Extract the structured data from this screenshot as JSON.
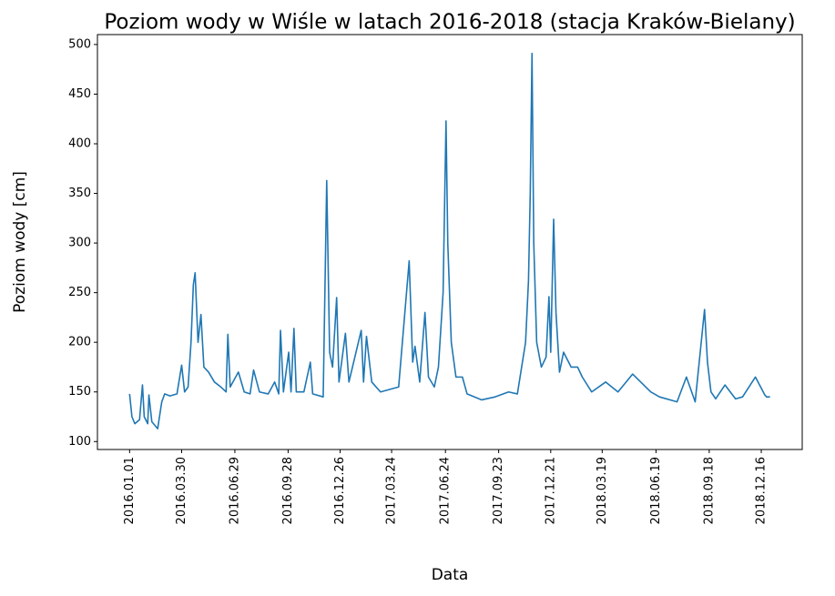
{
  "chart_data": {
    "type": "line",
    "title": "Poziom wody w Wiśle w latach 2016-2018 (stacja Kraków-Bielany)",
    "x_label": "Data",
    "y_label": "Poziom wody [cm]",
    "x": [
      "2016.01.01",
      "2016.01.05",
      "2016.01.10",
      "2016.01.18",
      "2016.01.23",
      "2016.01.26",
      "2016.02.01",
      "2016.02.03",
      "2016.02.08",
      "2016.02.18",
      "2016.02.25",
      "2016.03.01",
      "2016.03.10",
      "2016.03.22",
      "2016.03.30",
      "2016.04.04",
      "2016.04.10",
      "2016.04.15",
      "2016.04.19",
      "2016.04.22",
      "2016.04.27",
      "2016.05.02",
      "2016.05.07",
      "2016.05.15",
      "2016.05.25",
      "2016.06.05",
      "2016.06.14",
      "2016.06.17",
      "2016.06.21",
      "2016.07.05",
      "2016.07.15",
      "2016.07.25",
      "2016.07.31",
      "2016.08.10",
      "2016.08.25",
      "2016.09.05",
      "2016.09.12",
      "2016.09.15",
      "2016.09.20",
      "2016.09.29",
      "2016.10.03",
      "2016.10.08",
      "2016.10.12",
      "2016.10.25",
      "2016.11.05",
      "2016.11.09",
      "2016.11.27",
      "2016.12.03",
      "2016.12.08",
      "2016.12.13",
      "2016.12.20",
      "2016.12.24",
      "2017.01.04",
      "2017.01.10",
      "2017.01.31",
      "2017.02.04",
      "2017.02.09",
      "2017.02.18",
      "2017.03.05",
      "2017.04.05",
      "2017.04.23",
      "2017.04.29",
      "2017.05.03",
      "2017.05.11",
      "2017.05.20",
      "2017.05.26",
      "2017.06.05",
      "2017.06.12",
      "2017.06.20",
      "2017.06.25",
      "2017.06.28",
      "2017.07.04",
      "2017.07.12",
      "2017.07.23",
      "2017.07.31",
      "2017.08.25",
      "2017.09.17",
      "2017.10.10",
      "2017.10.25",
      "2017.11.08",
      "2017.11.13",
      "2017.11.16",
      "2017.11.19",
      "2017.11.22",
      "2017.11.27",
      "2017.12.05",
      "2017.12.13",
      "2017.12.18",
      "2017.12.21",
      "2017.12.26",
      "2017.12.30",
      "2018.01.05",
      "2018.01.12",
      "2018.01.25",
      "2018.02.05",
      "2018.02.13",
      "2018.03.01",
      "2018.03.25",
      "2018.04.15",
      "2018.05.10",
      "2018.06.10",
      "2018.06.25",
      "2018.07.25",
      "2018.08.10",
      "2018.08.25",
      "2018.09.10",
      "2018.09.15",
      "2018.09.21",
      "2018.09.29",
      "2018.10.15",
      "2018.11.02",
      "2018.11.14",
      "2018.12.06",
      "2018.12.22",
      "2018.12.25",
      "2018.12.31"
    ],
    "series": [
      {
        "name": "Poziom wody",
        "color": "#1f77b4",
        "values": [
          148,
          125,
          118,
          122,
          157,
          125,
          118,
          147,
          120,
          113,
          140,
          148,
          146,
          148,
          177,
          150,
          155,
          200,
          258,
          270,
          200,
          228,
          175,
          170,
          160,
          155,
          150,
          208,
          155,
          170,
          150,
          148,
          172,
          150,
          148,
          160,
          148,
          212,
          150,
          190,
          150,
          214,
          150,
          150,
          180,
          148,
          145,
          363,
          190,
          175,
          245,
          160,
          209,
          160,
          212,
          160,
          206,
          160,
          150,
          155,
          282,
          180,
          196,
          160,
          230,
          165,
          155,
          175,
          250,
          423,
          300,
          200,
          165,
          165,
          148,
          142,
          145,
          150,
          148,
          200,
          262,
          350,
          491,
          300,
          200,
          175,
          185,
          246,
          190,
          324,
          230,
          170,
          190,
          175,
          175,
          165,
          150,
          160,
          150,
          168,
          150,
          145,
          140,
          165,
          140,
          233,
          180,
          150,
          143,
          157,
          143,
          145,
          165,
          147,
          145,
          145
        ]
      }
    ],
    "xlim": [
      "2015.11.07",
      "2019.02.24"
    ],
    "xticks": [
      "2016.01.01",
      "2016.03.30",
      "2016.06.29",
      "2016.09.28",
      "2016.12.26",
      "2017.03.24",
      "2017.06.24",
      "2017.09.23",
      "2017.12.21",
      "2018.03.19",
      "2018.06.19",
      "2018.09.18",
      "2018.12.16"
    ],
    "ylim": [
      92,
      510
    ],
    "yticks": [
      100,
      150,
      200,
      250,
      300,
      350,
      400,
      450,
      500
    ]
  }
}
